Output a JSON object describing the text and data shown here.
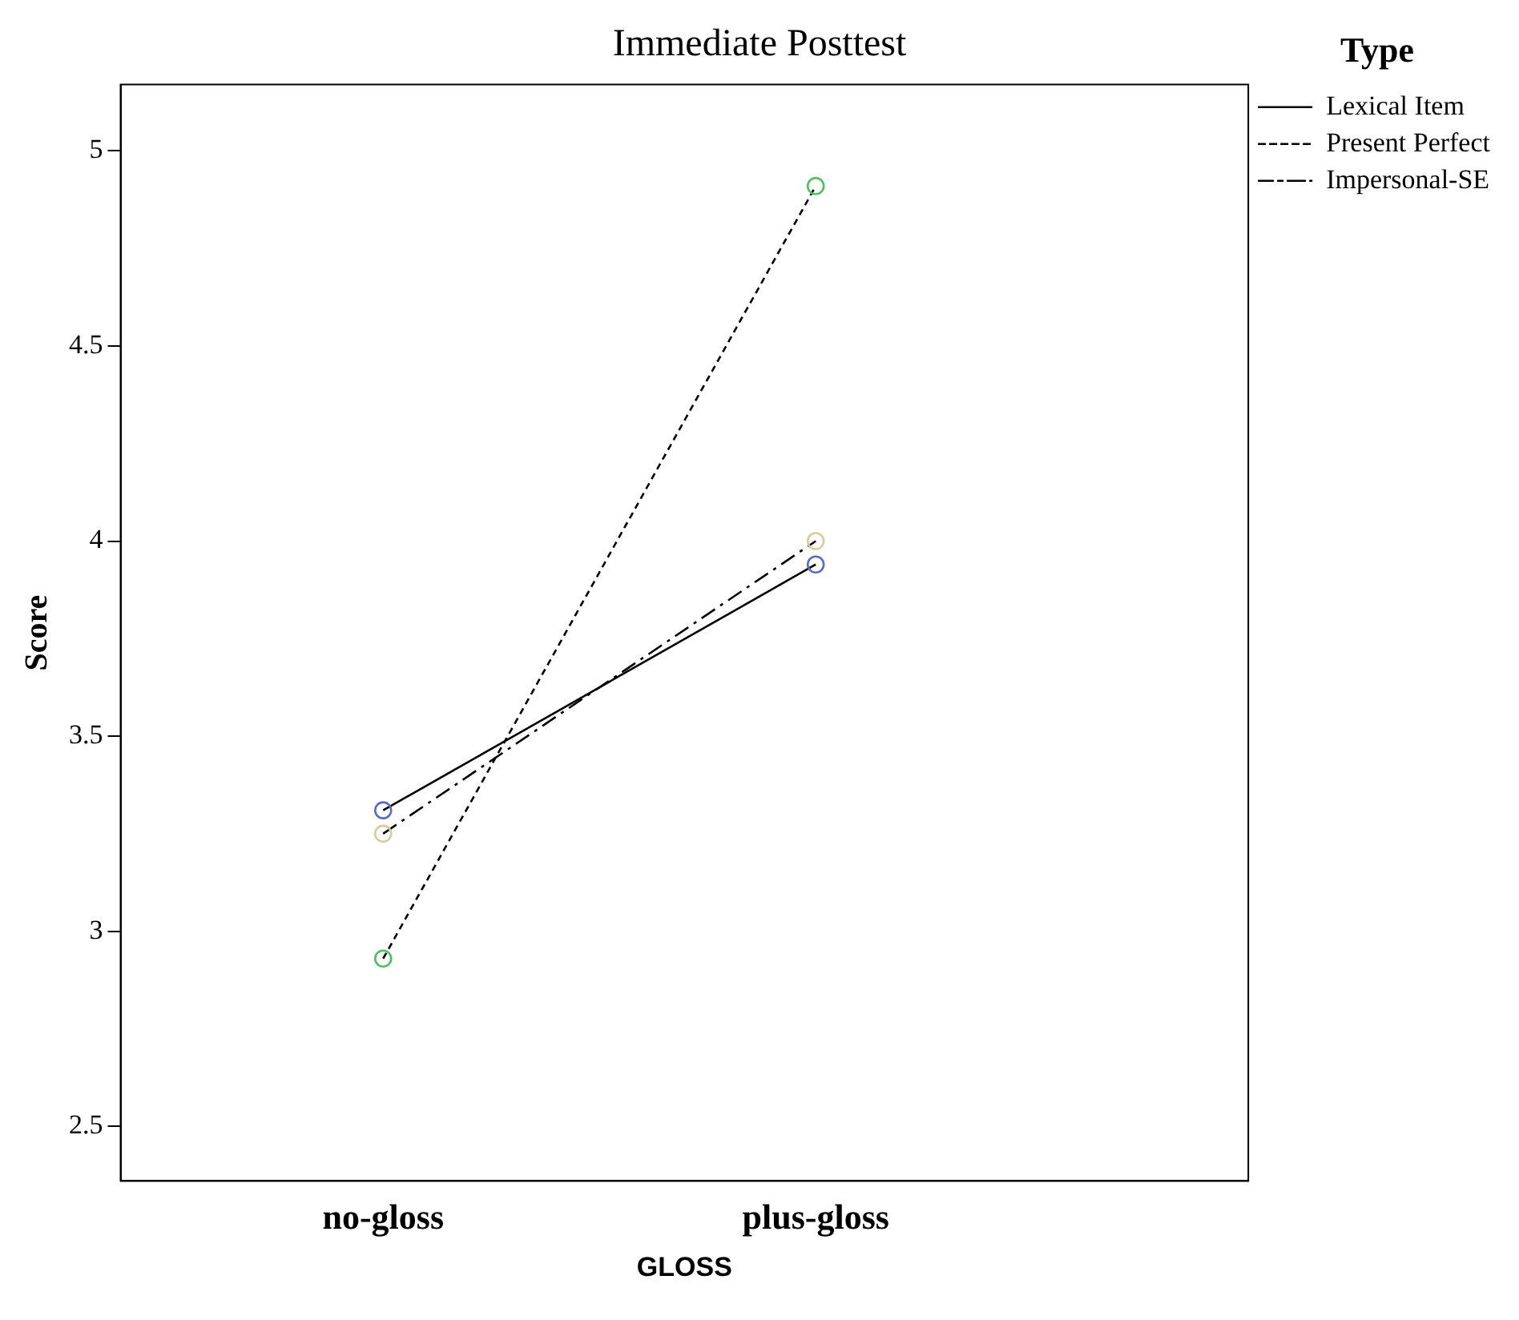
{
  "chart_data": {
    "type": "line",
    "title": "Immediate Posttest",
    "xlabel": "GLOSS",
    "ylabel": "Score",
    "legend_title": "Type",
    "categories": [
      "no-gloss",
      "plus-gloss"
    ],
    "series": [
      {
        "name": "Lexical Item",
        "color": "#000000",
        "line_style": "solid",
        "colors": [
          "#5b6bc4",
          "#5b6bc4"
        ],
        "values": [
          3.31,
          3.94
        ]
      },
      {
        "name": "Present Perfect",
        "color": "#000000",
        "line_style": "dashed",
        "colors": [
          "#4cbf5e",
          "#4cbf5e"
        ],
        "values": [
          2.93,
          4.91
        ]
      },
      {
        "name": "Impersonal-SE",
        "color": "#000000",
        "line_style": "dashdot",
        "colors": [
          "#d8cc9a",
          "#d8cc9a"
        ],
        "values": [
          3.25,
          4.0
        ]
      }
    ],
    "ylim": [
      2.36,
      5.17
    ],
    "yticks": [
      2.5,
      3,
      3.5,
      4,
      4.5,
      5
    ],
    "grid": false,
    "legend": "right",
    "marker": "circle"
  }
}
